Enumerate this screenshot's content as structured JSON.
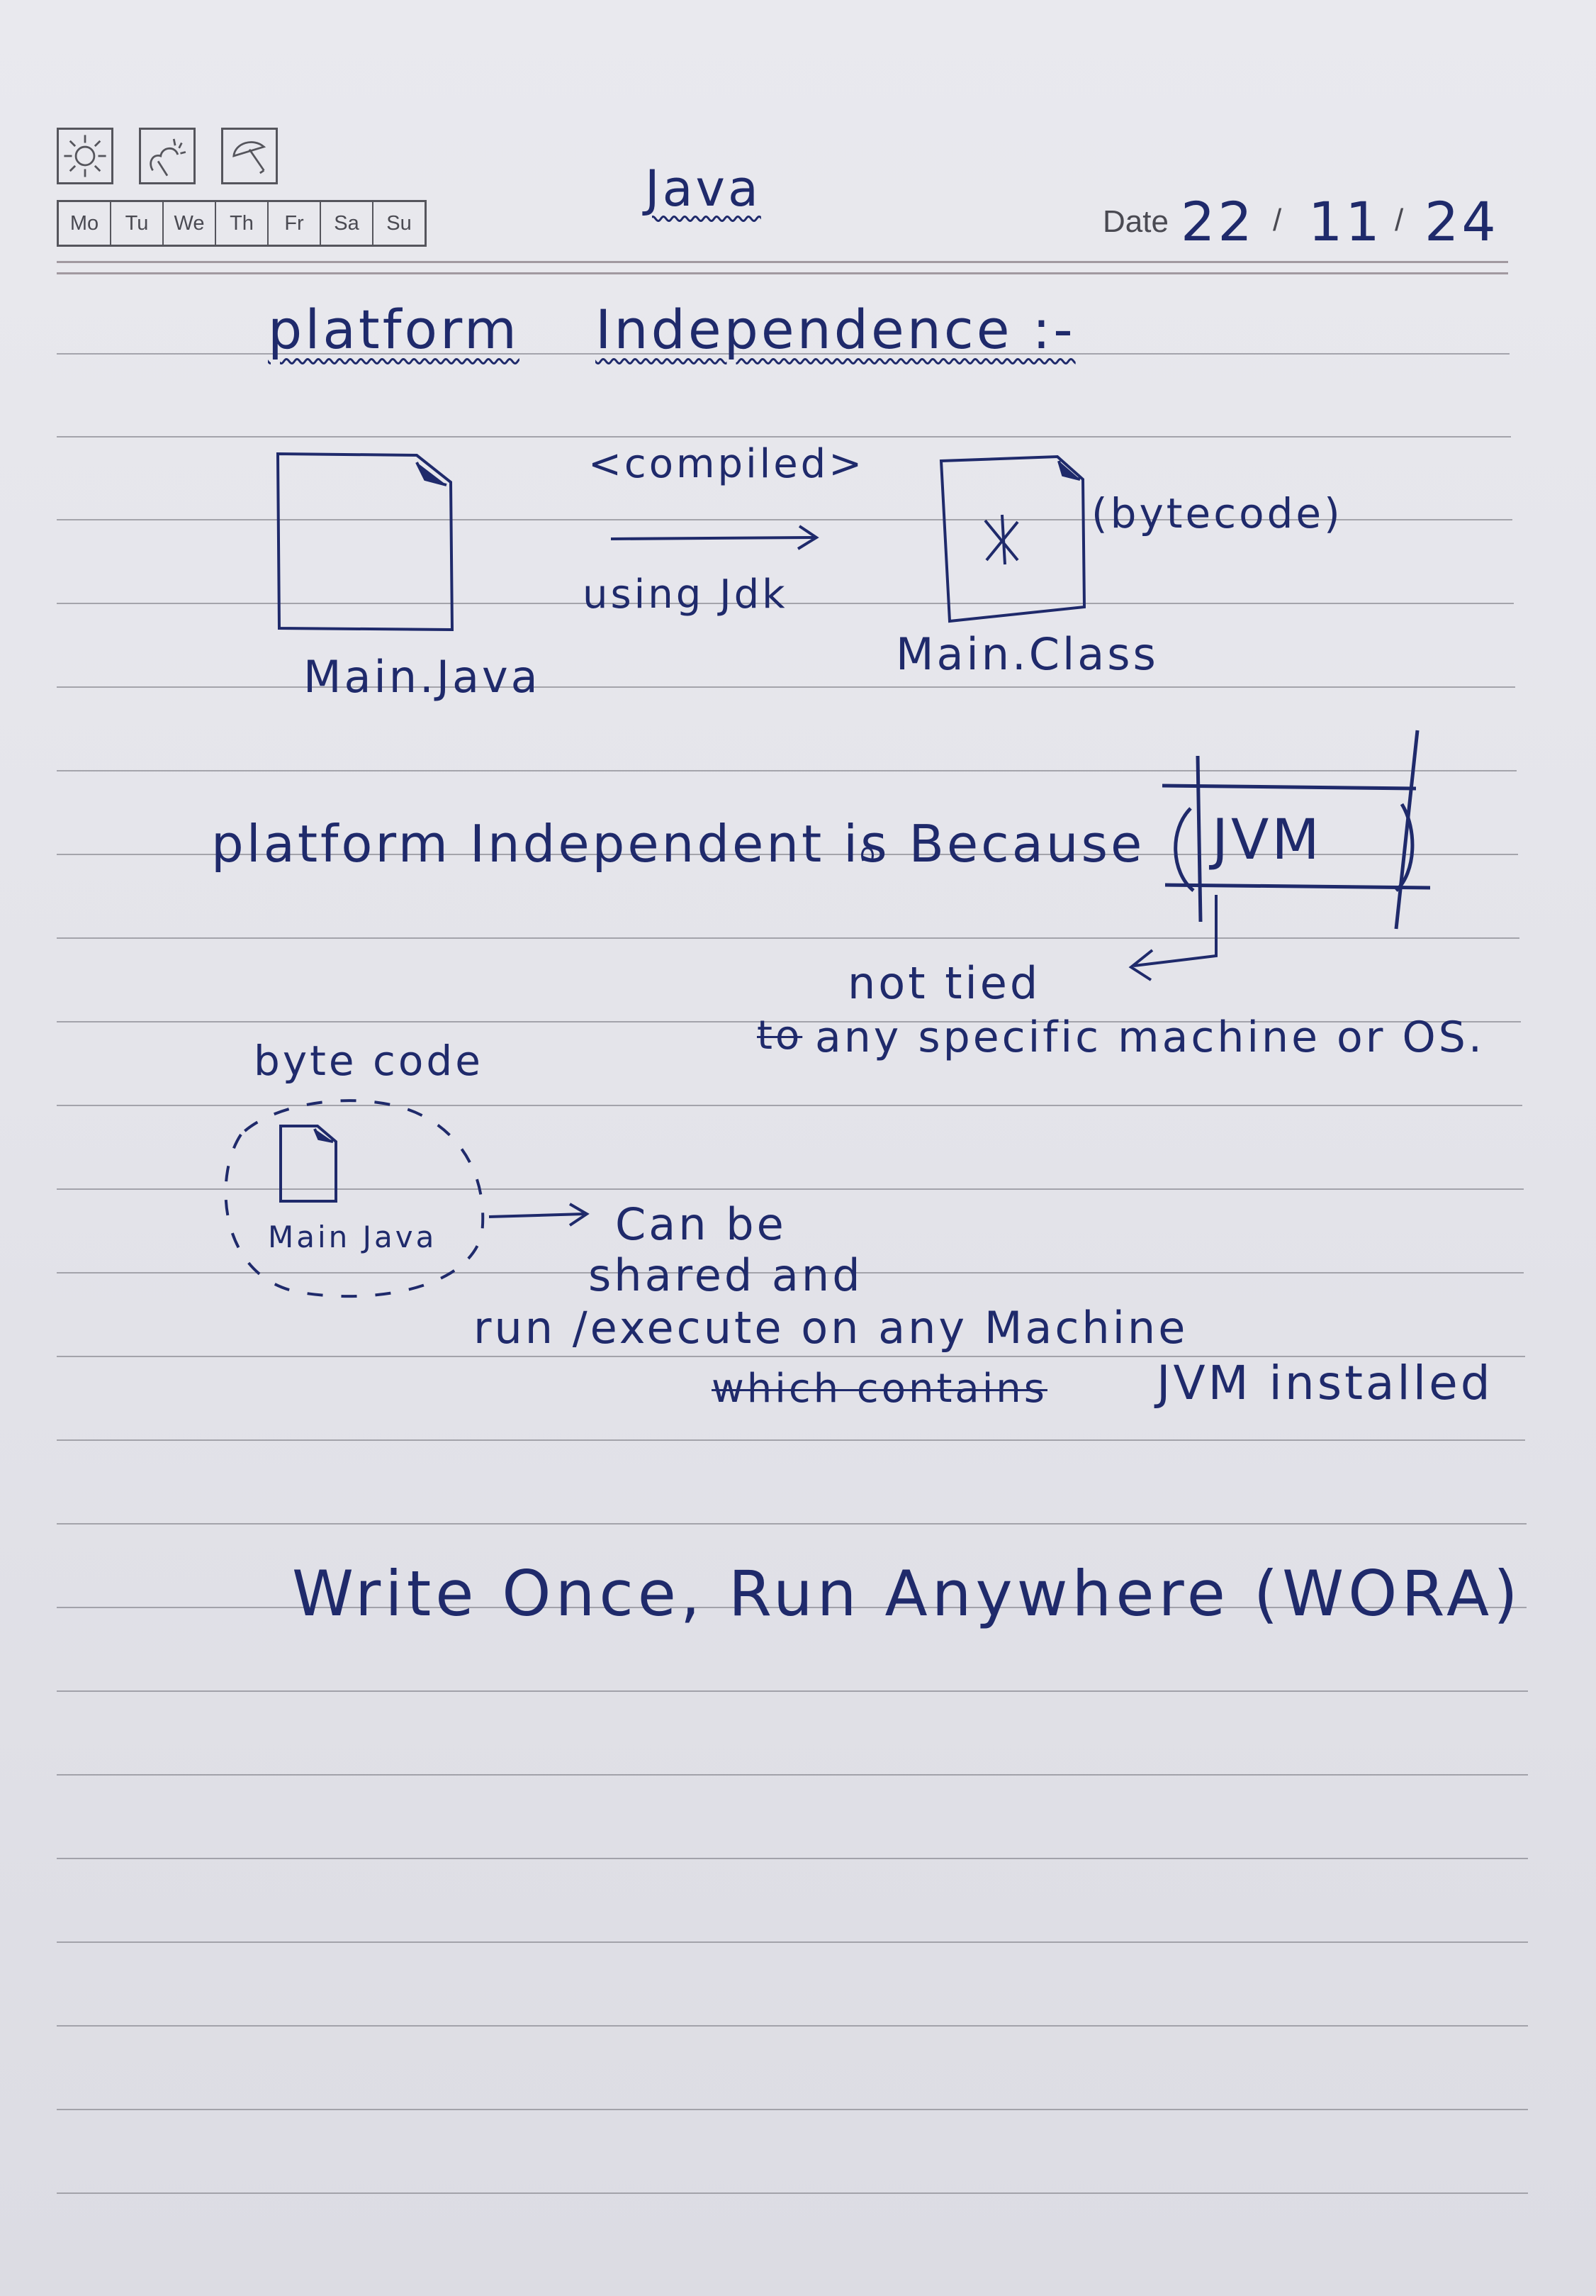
{
  "header": {
    "weather_icons": [
      "sun-icon",
      "cloud-sun-icon",
      "umbrella-icon"
    ],
    "days": [
      "Mo",
      "Tu",
      "We",
      "Th",
      "Fr",
      "Sa",
      "Su"
    ],
    "title": "Java",
    "date_label": "Date",
    "date_day": "22",
    "date_month": "11",
    "date_year": "24"
  },
  "notes": {
    "heading_word1": "platform",
    "heading_word2": "Independence :-",
    "compiled_label": "<compiled>",
    "using_jdk": "using Jdk",
    "source_file": "Main.Java",
    "class_file": "Main.Class",
    "bytecode_label": "(bytecode)",
    "reason_text": "platform Independent is Because",
    "jvm_label": "JVM",
    "not_tied_line1": "not tied",
    "not_tied_line2_struck": "to",
    "not_tied_line2": "any specific machine or OS.",
    "bytecode_title": "byte code",
    "circle_file": "Main Java",
    "shared_line1": "Can be",
    "shared_line2": "shared and",
    "shared_line3": "run /execute on any Machine",
    "shared_line4_struck": "which contains",
    "shared_line4": "JVM installed",
    "wora": "Write Once, Run Anywhere (WORA)"
  },
  "colors": {
    "ink": "#1f2a6b",
    "paper": "#e6e6eb",
    "rule": "#8d8d95"
  }
}
